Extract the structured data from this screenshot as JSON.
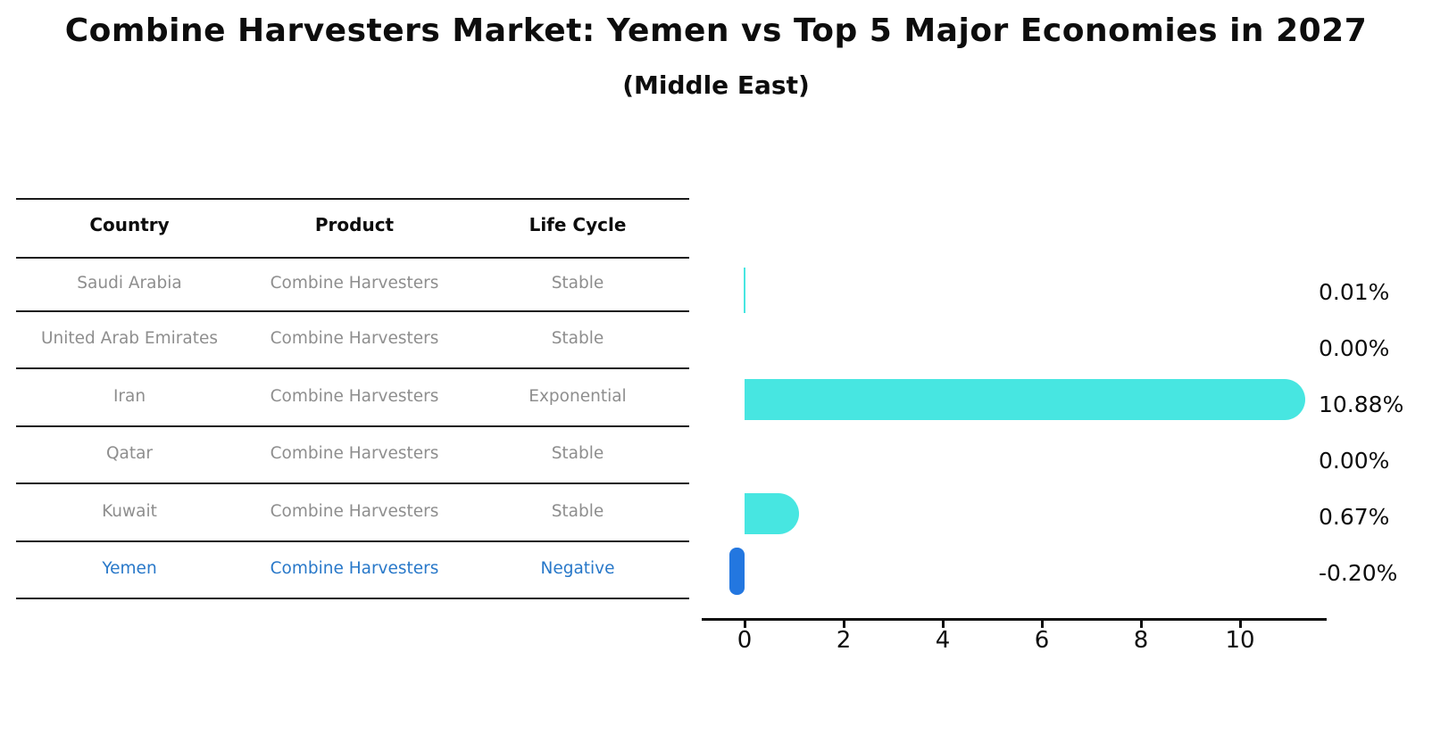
{
  "title": "Combine Harvesters Market: Yemen vs Top 5 Major Economies in 2027",
  "subtitle": "(Middle East)",
  "table": {
    "headers": [
      "Country",
      "Product",
      "Life Cycle"
    ],
    "rows": [
      {
        "country": "Saudi Arabia",
        "product": "Combine Harvesters",
        "life_cycle": "Stable"
      },
      {
        "country": "United Arab Emirates",
        "product": "Combine Harvesters",
        "life_cycle": "Stable"
      },
      {
        "country": "Iran",
        "product": "Combine Harvesters",
        "life_cycle": "Exponential"
      },
      {
        "country": "Qatar",
        "product": "Combine Harvesters",
        "life_cycle": "Stable"
      },
      {
        "country": "Kuwait",
        "product": "Combine Harvesters",
        "life_cycle": "Stable"
      },
      {
        "country": "Yemen",
        "product": "Combine Harvesters",
        "life_cycle": "Negative"
      }
    ]
  },
  "chart_data": {
    "type": "bar",
    "orientation": "horizontal",
    "title": "Combine Harvesters Market: Yemen vs Top 5 Major Economies in 2027 (Middle East)",
    "categories": [
      "Saudi Arabia",
      "United Arab Emirates",
      "Iran",
      "Qatar",
      "Kuwait",
      "Yemen"
    ],
    "values": [
      0.01,
      0.0,
      10.88,
      0.0,
      0.67,
      -0.2
    ],
    "value_labels": [
      "0.01%",
      "0.00%",
      "10.88%",
      "0.00%",
      "0.67%",
      "-0.20%"
    ],
    "x_ticks": [
      "0",
      "2",
      "4",
      "6",
      "8",
      "10"
    ],
    "xlim": [
      -0.85,
      11.6
    ],
    "grid": false,
    "legend": "none",
    "bar_color": "#47e6e1",
    "highlight_color": "#2377e0",
    "highlight_index": 5
  },
  "colors": {
    "background": "#ffffff",
    "text": "#0d0d0d",
    "muted_text": "#8e8e8e",
    "highlight_text": "#2878c9",
    "rule": "#1a1a1a"
  }
}
